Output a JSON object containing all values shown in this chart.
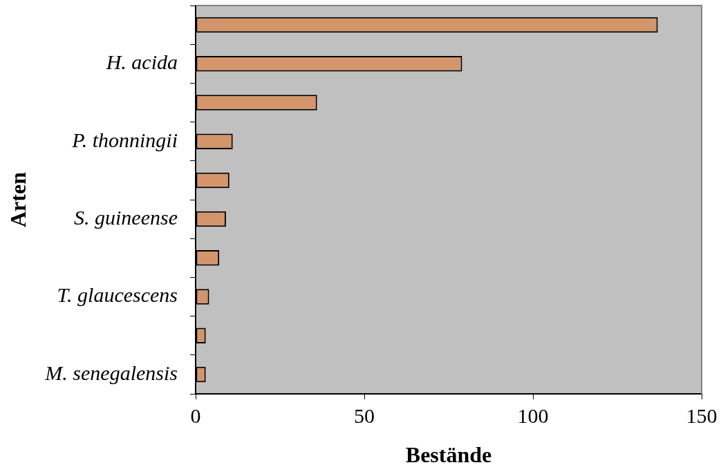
{
  "chart_data": {
    "type": "bar",
    "orientation": "horizontal",
    "xlabel": "Bestände",
    "ylabel": "Arten",
    "categories": [
      null,
      "H. acida",
      null,
      "P. thonningii",
      null,
      "S. guineense",
      null,
      "T. glaucescens",
      null,
      "M. senegalensis"
    ],
    "values": [
      137,
      79,
      36,
      11,
      10,
      9,
      7,
      4,
      3,
      3
    ],
    "color": "#d4956a",
    "xlim": [
      0,
      150
    ],
    "xticks": [
      0,
      50,
      100,
      150
    ]
  }
}
